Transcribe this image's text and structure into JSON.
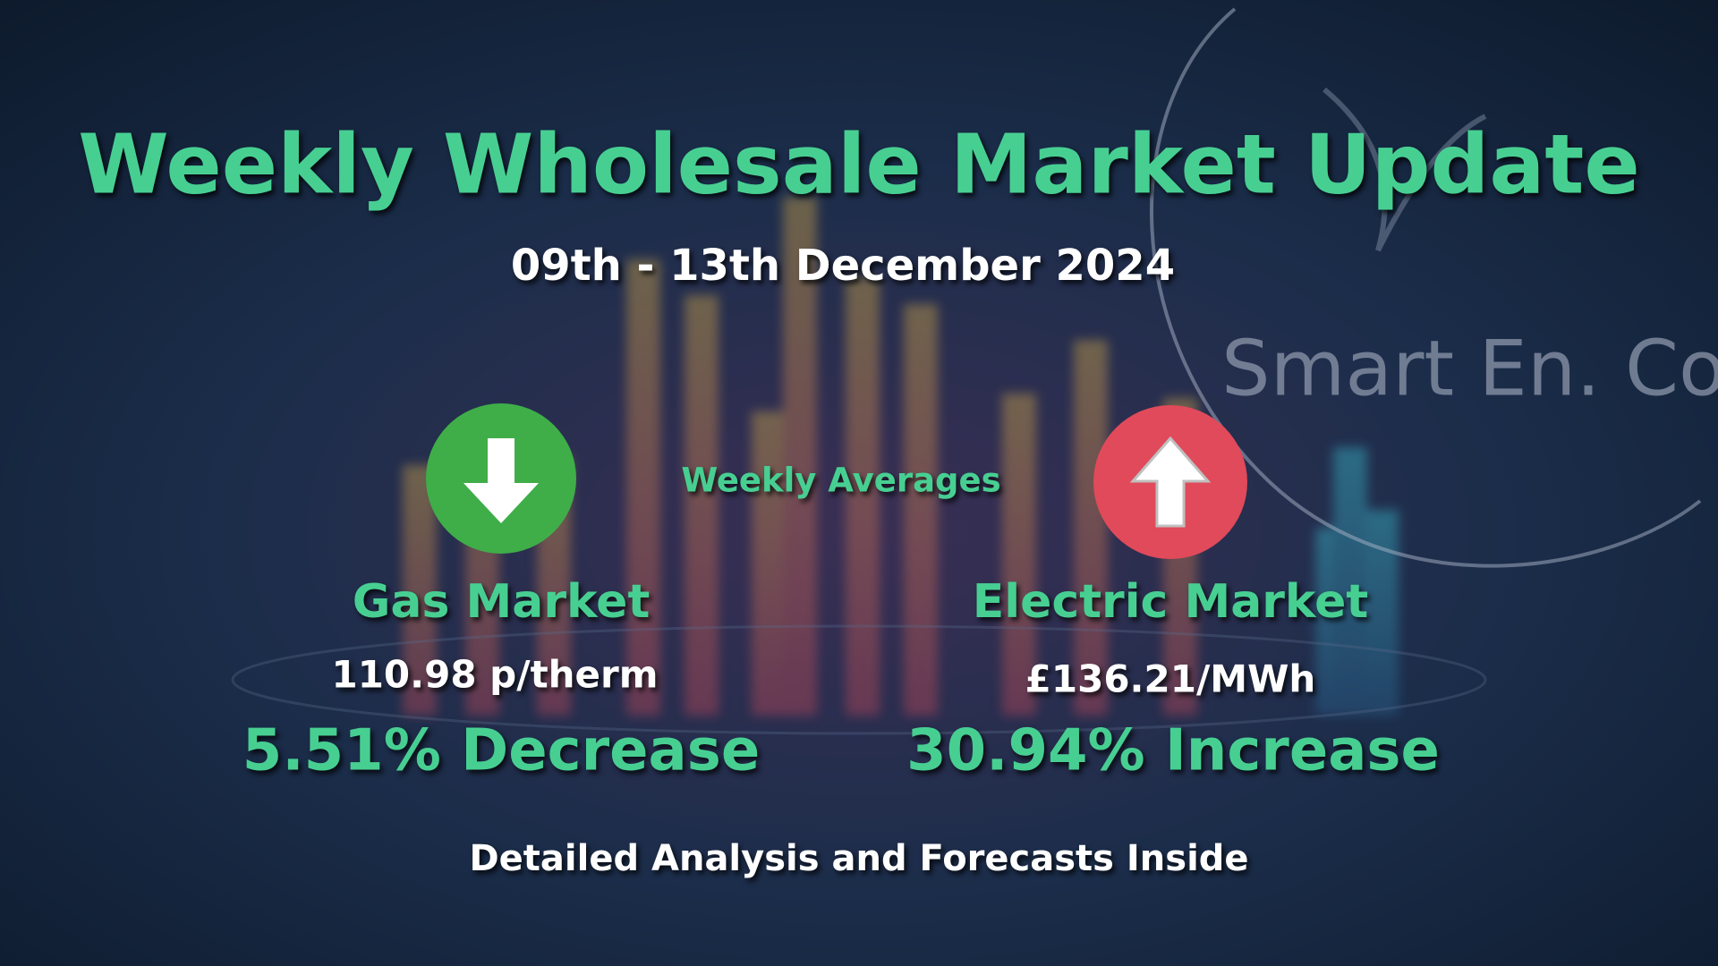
{
  "header": {
    "title": "Weekly Wholesale Market Update",
    "subtitle": "09th - 13th December 2024"
  },
  "logo": {
    "text": "Smart En. Co"
  },
  "averages_label": "Weekly Averages",
  "gas": {
    "name": "Gas Market",
    "price": "110.98 p/therm",
    "change": "5.51% Decrease"
  },
  "electric": {
    "name": "Electric Market",
    "price": "£136.21/MWh",
    "change": "30.94% Increase"
  },
  "footer": "Detailed Analysis and Forecasts Inside"
}
